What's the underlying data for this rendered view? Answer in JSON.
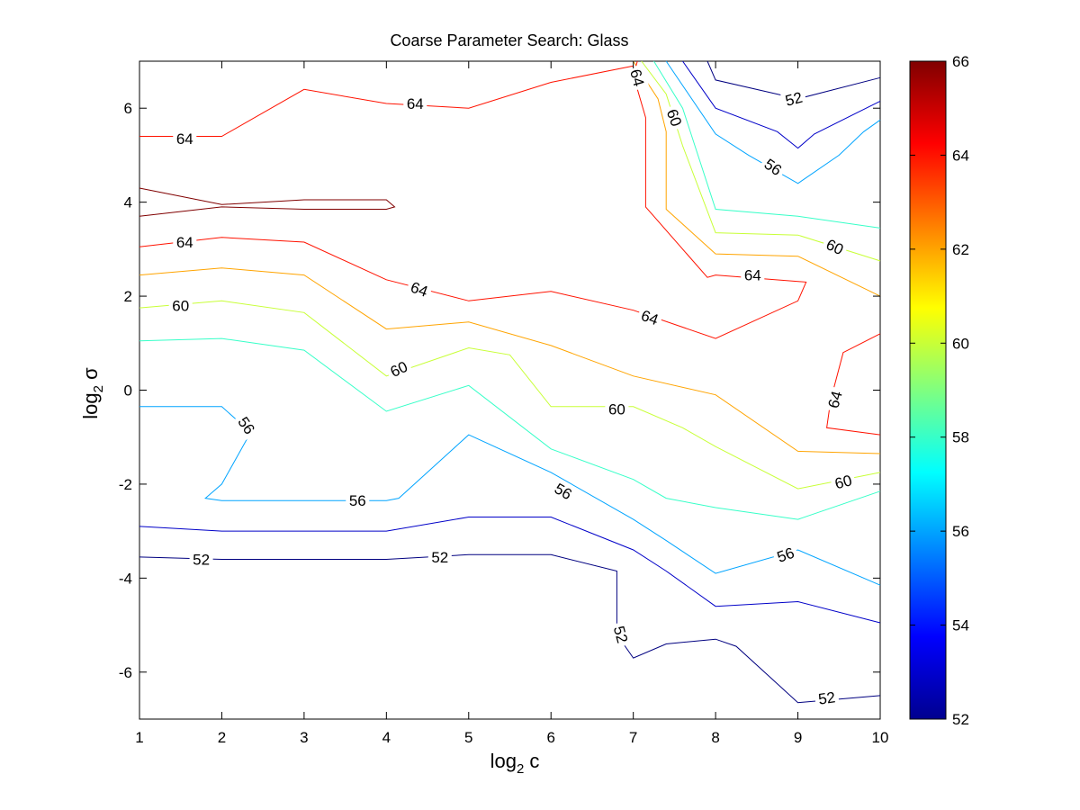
{
  "chart_data": {
    "type": "contour",
    "title": "Coarse Parameter Search: Glass",
    "xlabel": "log",
    "xlabel_sub": "2",
    "xlabel_tail": " c",
    "ylabel": "log",
    "ylabel_sub": "2",
    "ylabel_tail": " σ",
    "xlim": [
      1,
      10
    ],
    "ylim": [
      -7,
      7
    ],
    "xticks": [
      "1",
      "2",
      "3",
      "4",
      "5",
      "6",
      "7",
      "8",
      "9",
      "10"
    ],
    "yticks": [
      "-6",
      "-4",
      "-2",
      "0",
      "2",
      "4",
      "6"
    ],
    "colorbar": {
      "range": [
        52,
        66
      ],
      "ticks": [
        "52",
        "54",
        "56",
        "58",
        "60",
        "62",
        "64",
        "66"
      ]
    },
    "contours": [
      {
        "level": 52,
        "points": [
          [
            1,
            -3.55
          ],
          [
            2,
            -3.6
          ],
          [
            3,
            -3.6
          ],
          [
            4,
            -3.6
          ],
          [
            5,
            -3.5
          ],
          [
            6,
            -3.5
          ],
          [
            6.8,
            -3.85
          ],
          [
            6.8,
            -5.2
          ],
          [
            7,
            -5.7
          ],
          [
            7.4,
            -5.4
          ],
          [
            8,
            -5.3
          ],
          [
            8.25,
            -5.45
          ],
          [
            9,
            -6.65
          ],
          [
            10,
            -6.5
          ]
        ]
      },
      {
        "level": 52,
        "points": [
          [
            7.9,
            7
          ],
          [
            8,
            6.6
          ],
          [
            9,
            6.2
          ],
          [
            10,
            6.65
          ]
        ]
      },
      {
        "level": 53,
        "points": [
          [
            1,
            -2.9
          ],
          [
            2,
            -3.0
          ],
          [
            3,
            -3.0
          ],
          [
            4,
            -3.0
          ],
          [
            5,
            -2.7
          ],
          [
            6,
            -2.7
          ],
          [
            7,
            -3.4
          ],
          [
            7.4,
            -3.85
          ],
          [
            8,
            -4.6
          ],
          [
            9,
            -4.5
          ],
          [
            10,
            -4.95
          ]
        ]
      },
      {
        "level": 53,
        "points": [
          [
            7.6,
            7
          ],
          [
            8,
            6.0
          ],
          [
            8.75,
            5.5
          ],
          [
            9,
            5.15
          ],
          [
            9.2,
            5.45
          ],
          [
            10,
            6.15
          ]
        ]
      },
      {
        "level": 56,
        "points": [
          [
            1,
            -0.35
          ],
          [
            2,
            -0.35
          ],
          [
            2.35,
            -0.9
          ],
          [
            2,
            -2.0
          ],
          [
            1.8,
            -2.3
          ],
          [
            2,
            -2.35
          ],
          [
            4,
            -2.35
          ],
          [
            4.15,
            -2.3
          ],
          [
            5,
            -0.95
          ],
          [
            6,
            -1.75
          ],
          [
            7,
            -2.75
          ],
          [
            7.4,
            -3.2
          ],
          [
            8,
            -3.9
          ],
          [
            9,
            -3.4
          ],
          [
            10,
            -4.15
          ]
        ]
      },
      {
        "level": 56,
        "points": [
          [
            7.4,
            7
          ],
          [
            8,
            5.45
          ],
          [
            8.4,
            5.0
          ],
          [
            9,
            4.4
          ],
          [
            9.5,
            5.0
          ],
          [
            9.8,
            5.5
          ],
          [
            10,
            5.75
          ]
        ]
      },
      {
        "level": 58,
        "points": [
          [
            1,
            1.05
          ],
          [
            2,
            1.1
          ],
          [
            3,
            0.85
          ],
          [
            4,
            -0.45
          ],
          [
            5,
            0.1
          ],
          [
            6,
            -1.25
          ],
          [
            7,
            -1.9
          ],
          [
            7.4,
            -2.3
          ],
          [
            8,
            -2.5
          ],
          [
            9,
            -2.75
          ],
          [
            10,
            -2.15
          ]
        ]
      },
      {
        "level": 58,
        "points": [
          [
            7.25,
            7
          ],
          [
            7.6,
            6.0
          ],
          [
            8,
            3.85
          ],
          [
            9,
            3.7
          ],
          [
            10,
            3.45
          ]
        ]
      },
      {
        "level": 60,
        "points": [
          [
            1,
            1.75
          ],
          [
            2,
            1.9
          ],
          [
            3,
            1.65
          ],
          [
            4,
            0.3
          ],
          [
            5,
            0.9
          ],
          [
            5.5,
            0.75
          ],
          [
            6,
            -0.35
          ],
          [
            7,
            -0.35
          ],
          [
            7.6,
            -0.8
          ],
          [
            8,
            -1.2
          ],
          [
            9,
            -2.1
          ],
          [
            10,
            -1.75
          ]
        ]
      },
      {
        "level": 60,
        "points": [
          [
            7.1,
            7
          ],
          [
            7.4,
            6.3
          ],
          [
            7.6,
            5.2
          ],
          [
            8,
            3.35
          ],
          [
            9,
            3.3
          ],
          [
            10,
            2.75
          ]
        ]
      },
      {
        "level": 62,
        "points": [
          [
            1,
            2.45
          ],
          [
            2,
            2.6
          ],
          [
            3,
            2.45
          ],
          [
            4,
            1.3
          ],
          [
            5,
            1.45
          ],
          [
            6,
            0.95
          ],
          [
            7,
            0.3
          ],
          [
            8,
            -0.1
          ],
          [
            9,
            -1.3
          ],
          [
            10,
            -1.35
          ]
        ]
      },
      {
        "level": 62,
        "points": [
          [
            7.0,
            7
          ],
          [
            7.3,
            6.2
          ],
          [
            7.4,
            5.5
          ],
          [
            7.4,
            3.85
          ],
          [
            8,
            2.9
          ],
          [
            9,
            2.85
          ],
          [
            10,
            2.0
          ]
        ]
      },
      {
        "level": 64,
        "points": [
          [
            1,
            5.4
          ],
          [
            2,
            5.4
          ],
          [
            3,
            6.4
          ],
          [
            4,
            6.1
          ],
          [
            5,
            6.0
          ],
          [
            6,
            6.55
          ],
          [
            7,
            6.9
          ]
        ]
      },
      {
        "level": 64,
        "points": [
          [
            1,
            3.05
          ],
          [
            2,
            3.25
          ],
          [
            3,
            3.15
          ],
          [
            4,
            2.35
          ],
          [
            5,
            1.9
          ],
          [
            6,
            2.1
          ],
          [
            7,
            1.7
          ],
          [
            8,
            1.1
          ],
          [
            9,
            1.9
          ],
          [
            9.1,
            2.3
          ],
          [
            8,
            2.45
          ],
          [
            7.9,
            2.4
          ],
          [
            7.15,
            3.9
          ],
          [
            7.15,
            5.8
          ],
          [
            7.0,
            6.7
          ],
          [
            7.05,
            7
          ]
        ]
      },
      {
        "level": 64,
        "points": [
          [
            10,
            1.2
          ],
          [
            9.55,
            0.8
          ],
          [
            9.4,
            -0.2
          ],
          [
            9.35,
            -0.8
          ],
          [
            10,
            -0.95
          ]
        ]
      },
      {
        "level": 66,
        "points": [
          [
            1,
            4.3
          ],
          [
            2,
            3.95
          ],
          [
            3,
            4.05
          ],
          [
            4,
            4.05
          ],
          [
            4.1,
            3.9
          ],
          [
            4,
            3.85
          ],
          [
            3,
            3.85
          ],
          [
            2,
            3.9
          ],
          [
            1,
            3.7
          ]
        ]
      }
    ],
    "labels": [
      {
        "text": "64",
        "x": 1.55,
        "y": 5.35,
        "angle": 0
      },
      {
        "text": "64",
        "x": 4.35,
        "y": 6.1,
        "angle": 0
      },
      {
        "text": "64",
        "x": 7.05,
        "y": 6.65,
        "angle": 75
      },
      {
        "text": "60",
        "x": 7.5,
        "y": 5.8,
        "angle": 70
      },
      {
        "text": "52",
        "x": 8.95,
        "y": 6.2,
        "angle": -15
      },
      {
        "text": "56",
        "x": 8.7,
        "y": 4.75,
        "angle": 35
      },
      {
        "text": "64",
        "x": 1.55,
        "y": 3.15,
        "angle": 0
      },
      {
        "text": "64",
        "x": 4.4,
        "y": 2.15,
        "angle": 20
      },
      {
        "text": "64",
        "x": 7.2,
        "y": 1.55,
        "angle": 20
      },
      {
        "text": "64",
        "x": 8.45,
        "y": 2.45,
        "angle": 0
      },
      {
        "text": "60",
        "x": 9.45,
        "y": 3.05,
        "angle": 25
      },
      {
        "text": "60",
        "x": 1.5,
        "y": 1.8,
        "angle": 0
      },
      {
        "text": "60",
        "x": 4.15,
        "y": 0.45,
        "angle": -25
      },
      {
        "text": "60",
        "x": 6.8,
        "y": -0.4,
        "angle": 0
      },
      {
        "text": "64",
        "x": 9.45,
        "y": -0.2,
        "angle": -75
      },
      {
        "text": "56",
        "x": 2.3,
        "y": -0.75,
        "angle": 55
      },
      {
        "text": "56",
        "x": 3.65,
        "y": -2.35,
        "angle": 0
      },
      {
        "text": "56",
        "x": 6.15,
        "y": -2.15,
        "angle": 30
      },
      {
        "text": "60",
        "x": 9.55,
        "y": -1.95,
        "angle": -15
      },
      {
        "text": "52",
        "x": 1.75,
        "y": -3.6,
        "angle": 0
      },
      {
        "text": "52",
        "x": 4.65,
        "y": -3.55,
        "angle": 0
      },
      {
        "text": "56",
        "x": 8.85,
        "y": -3.5,
        "angle": -20
      },
      {
        "text": "52",
        "x": 6.85,
        "y": -5.2,
        "angle": 75
      },
      {
        "text": "52",
        "x": 9.35,
        "y": -6.55,
        "angle": -8
      }
    ]
  }
}
